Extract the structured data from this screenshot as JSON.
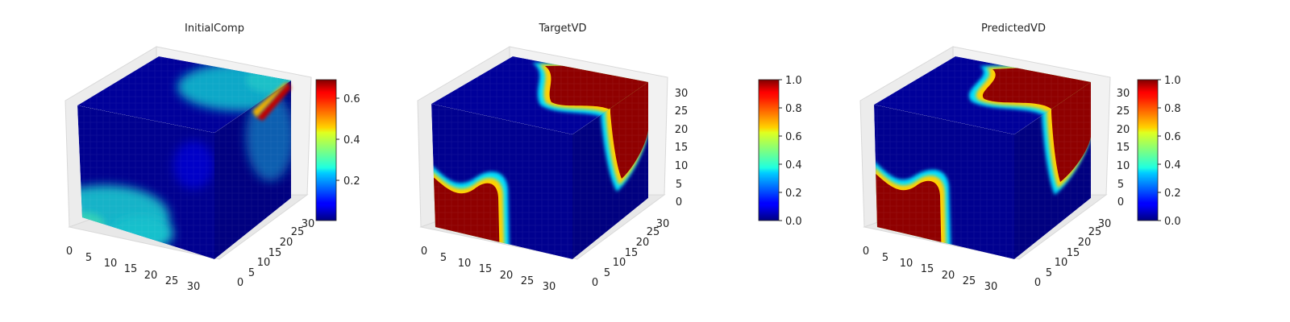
{
  "chart_data": [
    {
      "type": "heatmap",
      "title": "InitialComp",
      "x_ticks": [
        "0",
        "5",
        "10",
        "15",
        "20",
        "25",
        "30"
      ],
      "y_ticks": [
        "0",
        "5",
        "10",
        "15",
        "20",
        "25",
        "30"
      ],
      "z_ticks": [],
      "colorbar": {
        "ticks": [
          "0.2",
          "0.4",
          "0.6"
        ],
        "range": [
          0.02,
          0.7
        ],
        "colormap": "jet"
      }
    },
    {
      "type": "heatmap",
      "title": "TargetVD",
      "x_ticks": [
        "0",
        "5",
        "10",
        "15",
        "20",
        "25",
        "30"
      ],
      "y_ticks": [
        "0",
        "5",
        "10",
        "15",
        "20",
        "25",
        "30"
      ],
      "z_ticks": [
        "0",
        "5",
        "10",
        "15",
        "20",
        "25",
        "30"
      ],
      "colorbar": {
        "ticks": [
          "0.0",
          "0.2",
          "0.4",
          "0.6",
          "0.8",
          "1.0"
        ],
        "range": [
          0,
          1
        ],
        "colormap": "jet"
      }
    },
    {
      "type": "heatmap",
      "title": "PredictedVD",
      "x_ticks": [
        "0",
        "5",
        "10",
        "15",
        "20",
        "25",
        "30"
      ],
      "y_ticks": [
        "0",
        "5",
        "10",
        "15",
        "20",
        "25",
        "30"
      ],
      "z_ticks": [
        "0",
        "5",
        "10",
        "15",
        "20",
        "25",
        "30"
      ],
      "colorbar": {
        "ticks": [
          "0.0",
          "0.2",
          "0.4",
          "0.6",
          "0.8",
          "1.0"
        ],
        "range": [
          0,
          1
        ],
        "colormap": "jet"
      }
    }
  ]
}
